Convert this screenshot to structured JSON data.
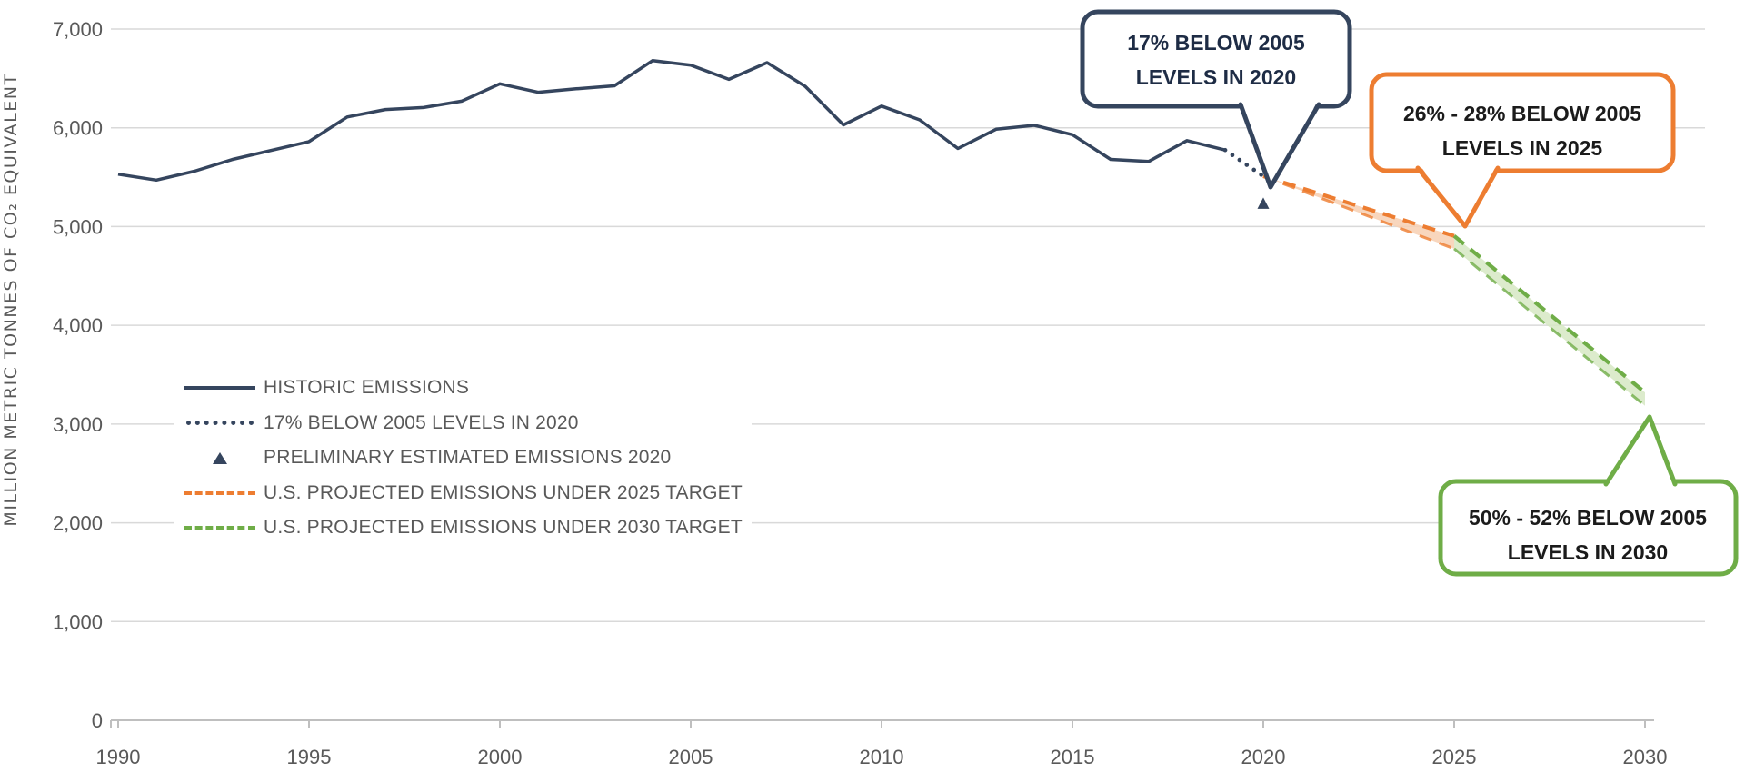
{
  "chart_data": {
    "type": "line",
    "title": "",
    "xlabel": "",
    "ylabel": "MILLION METRIC TONNES OF CO₂ EQUIVALENT",
    "xlim": [
      1990,
      2030
    ],
    "ylim": [
      0,
      7000
    ],
    "grid": true,
    "legend_position": "middle-left",
    "y_ticks": [
      7000,
      6000,
      5000,
      4000,
      3000,
      2000,
      1000,
      0
    ],
    "y_tick_labels": [
      "7,000",
      "6,000",
      "5,000",
      "4,000",
      "3,000",
      "2,000",
      "1,000",
      "0"
    ],
    "x_ticks": [
      1990,
      1995,
      2000,
      2005,
      2010,
      2015,
      2020,
      2025,
      2030
    ],
    "x_tick_labels": [
      "1990",
      "1995",
      "2000",
      "2005",
      "2010",
      "2015",
      "2020",
      "2025",
      "2030"
    ],
    "series": [
      {
        "name": "HISTORIC EMISSIONS",
        "style": "solid",
        "color": "#35455e",
        "x": [
          1990,
          1991,
          1992,
          1993,
          1994,
          1995,
          1996,
          1997,
          1998,
          1999,
          2000,
          2001,
          2002,
          2003,
          2004,
          2005,
          2006,
          2007,
          2008,
          2009,
          2010,
          2011,
          2012,
          2013,
          2014,
          2015,
          2016,
          2017,
          2018,
          2019
        ],
        "y": [
          5530,
          5470,
          5560,
          5680,
          5770,
          5860,
          6110,
          6185,
          6205,
          6270,
          6445,
          6360,
          6395,
          6425,
          6680,
          6635,
          6490,
          6660,
          6420,
          6030,
          6220,
          6080,
          5790,
          5985,
          6025,
          5930,
          5680,
          5660,
          5870,
          5775
        ]
      },
      {
        "name": "17% BELOW 2005 LEVELS IN 2020",
        "style": "dotted",
        "color": "#35455e",
        "x": [
          2019,
          2020
        ],
        "y": [
          5775,
          5510
        ]
      },
      {
        "name": "PRELIMINARY ESTIMATED EMISSIONS 2020",
        "style": "marker-triangle",
        "color": "#35455e",
        "x": [
          2020
        ],
        "y": [
          5230
        ]
      },
      {
        "name": "U.S. PROJECTED EMISSIONS UNDER 2025 TARGET",
        "style": "dashed-band",
        "color": "#ed7d31",
        "fill": "#f7cfb2",
        "x": [
          2020,
          2025
        ],
        "y_upper": [
          5510,
          4905
        ],
        "y_lower": [
          5510,
          4775
        ]
      },
      {
        "name": "U.S. PROJECTED EMISSIONS UNDER 2030 TARGET",
        "style": "dashed-band",
        "color": "#6fad47",
        "fill": "#d6e8c3",
        "x": [
          2025,
          2030
        ],
        "y_upper": [
          4905,
          3320
        ],
        "y_lower": [
          4775,
          3185
        ]
      }
    ]
  },
  "legend": {
    "items": [
      {
        "label": "HISTORIC EMISSIONS",
        "swatch": "solid-line",
        "color": "#35455e"
      },
      {
        "label": "17% BELOW 2005 LEVELS IN 2020",
        "swatch": "dotted-line",
        "color": "#35455e"
      },
      {
        "label": "PRELIMINARY ESTIMATED EMISSIONS 2020",
        "swatch": "triangle-marker",
        "color": "#35455e"
      },
      {
        "label": "U.S. PROJECTED EMISSIONS UNDER 2025 TARGET",
        "swatch": "dashed-line",
        "color": "#ed7d31"
      },
      {
        "label": "U.S. PROJECTED EMISSIONS UNDER 2030 TARGET",
        "swatch": "dashed-line",
        "color": "#6fad47"
      }
    ]
  },
  "callouts": [
    {
      "line1": "17% BELOW 2005",
      "line2": "LEVELS IN 2020",
      "color": "#35455e",
      "points_to": {
        "year": 2020,
        "value": 5510
      }
    },
    {
      "line1": "26% - 28% BELOW 2005",
      "line2": "LEVELS IN 2025",
      "color": "#ed7d31",
      "points_to": {
        "year": 2025,
        "value": 4890
      }
    },
    {
      "line1": "50% - 52% BELOW 2005",
      "line2": "LEVELS IN 2030",
      "color": "#6fad47",
      "points_to": {
        "year": 2030,
        "value": 3250
      }
    }
  ]
}
